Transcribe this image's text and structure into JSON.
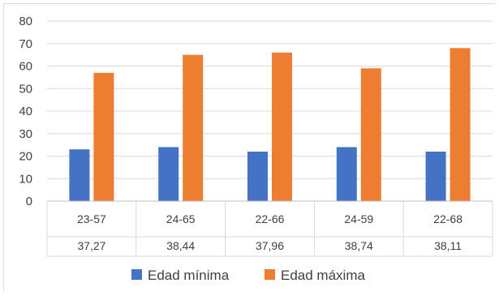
{
  "chart_data": {
    "type": "bar",
    "categories": [
      "23-57",
      "24-65",
      "22-66",
      "24-59",
      "22-68"
    ],
    "table_row": [
      "37,27",
      "38,44",
      "37,96",
      "38,74",
      "38,11"
    ],
    "series": [
      {
        "name": "Edad mínima",
        "values": [
          23,
          24,
          22,
          24,
          22
        ],
        "color": "#4472c4"
      },
      {
        "name": "Edad máxima",
        "values": [
          57,
          65,
          66,
          59,
          68
        ],
        "color": "#ed7d31"
      }
    ],
    "yticks": [
      "0",
      "10",
      "20",
      "30",
      "40",
      "50",
      "60",
      "70",
      "80"
    ],
    "ylim": [
      0,
      80
    ],
    "grid": true,
    "legend": "bottom"
  }
}
